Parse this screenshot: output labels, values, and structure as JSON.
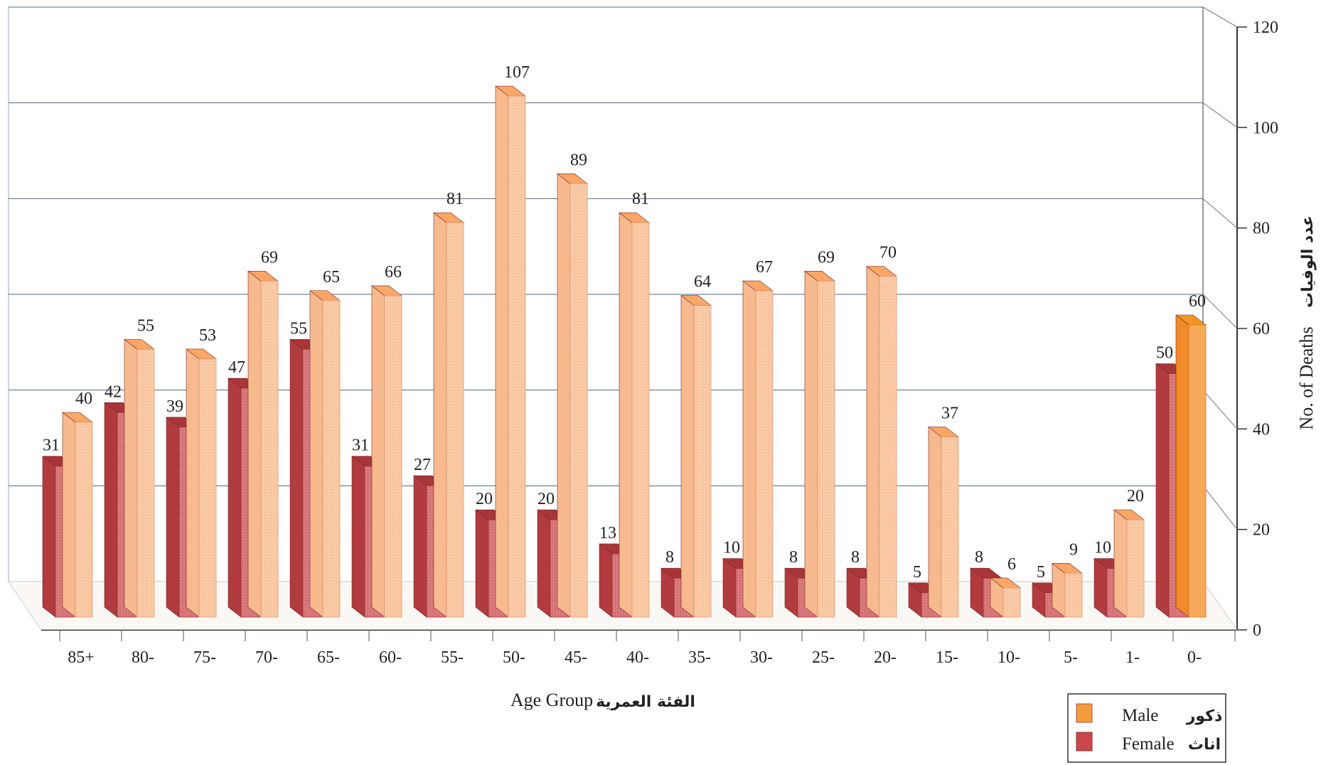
{
  "chart_data": {
    "type": "bar",
    "categories": [
      "85+",
      "80-",
      "75-",
      "70-",
      "65-",
      "60-",
      "55-",
      "50-",
      "45-",
      "40-",
      "35-",
      "30-",
      "25-",
      "20-",
      "15-",
      "10-",
      "5-",
      "1-",
      "0-"
    ],
    "series": [
      {
        "name": "Female",
        "name_ar": "اناث",
        "color": "#c9474a",
        "values": [
          31,
          42,
          39,
          47,
          55,
          31,
          27,
          20,
          20,
          13,
          8,
          10,
          8,
          8,
          5,
          8,
          5,
          10,
          50
        ]
      },
      {
        "name": "Male",
        "name_ar": "ذكور",
        "color": "#f4b48c",
        "values": [
          40,
          55,
          53,
          69,
          65,
          66,
          81,
          107,
          89,
          81,
          64,
          67,
          69,
          70,
          37,
          6,
          9,
          20,
          60
        ]
      }
    ],
    "xlabel": "Age Group",
    "xlabel_ar": "الفئة العمرية",
    "ylabel": "No. of Deaths",
    "ylabel_ar": "عدد الوفيات",
    "ylim": [
      0,
      120
    ],
    "yticks": [
      0,
      20,
      40,
      60,
      80,
      100,
      120
    ],
    "grid": true,
    "legend": "bottom-right"
  }
}
